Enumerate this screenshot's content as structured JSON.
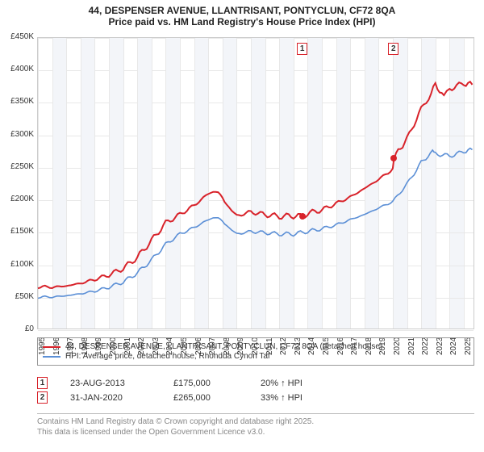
{
  "title_main": "44, DESPENSER AVENUE, LLANTRISANT, PONTYCLUN, CF72 8QA",
  "title_sub": "Price paid vs. HM Land Registry's House Price Index (HPI)",
  "chart": {
    "type": "line",
    "x_min": 1995,
    "x_max": 2025.8,
    "y_min": 0,
    "y_max": 450000,
    "y_ticks": [
      0,
      50000,
      100000,
      150000,
      200000,
      250000,
      300000,
      350000,
      400000,
      450000
    ],
    "y_tick_labels": [
      "£0",
      "£50K",
      "£100K",
      "£150K",
      "£200K",
      "£250K",
      "£300K",
      "£350K",
      "£400K",
      "£450K"
    ],
    "x_ticks": [
      1995,
      1996,
      1997,
      1998,
      1999,
      2000,
      2001,
      2002,
      2003,
      2004,
      2005,
      2006,
      2007,
      2008,
      2009,
      2010,
      2011,
      2012,
      2013,
      2014,
      2015,
      2016,
      2017,
      2018,
      2019,
      2020,
      2021,
      2022,
      2023,
      2024,
      2025
    ],
    "grid_color": "#e8e8e8",
    "band_color": "#f3f5f9",
    "background_color": "#ffffff",
    "series": [
      {
        "name": "property",
        "color": "#d8222a",
        "width": 2,
        "points": [
          [
            1995,
            67000
          ],
          [
            1996,
            66000
          ],
          [
            1997,
            68000
          ],
          [
            1998,
            72000
          ],
          [
            1999,
            78000
          ],
          [
            2000,
            85000
          ],
          [
            2001,
            95000
          ],
          [
            2002,
            112000
          ],
          [
            2003,
            138000
          ],
          [
            2004,
            165000
          ],
          [
            2005,
            178000
          ],
          [
            2006,
            192000
          ],
          [
            2007,
            210000
          ],
          [
            2007.7,
            215000
          ],
          [
            2008.3,
            192000
          ],
          [
            2009,
            176000
          ],
          [
            2010,
            182000
          ],
          [
            2011,
            178000
          ],
          [
            2012,
            175000
          ],
          [
            2013,
            176000
          ],
          [
            2013.65,
            175000
          ],
          [
            2014,
            180000
          ],
          [
            2015,
            185000
          ],
          [
            2016,
            195000
          ],
          [
            2017,
            205000
          ],
          [
            2018,
            218000
          ],
          [
            2019,
            232000
          ],
          [
            2020,
            248000
          ],
          [
            2020.08,
            265000
          ],
          [
            2021,
            295000
          ],
          [
            2022,
            340000
          ],
          [
            2022.7,
            365000
          ],
          [
            2023,
            378000
          ],
          [
            2023.6,
            360000
          ],
          [
            2024,
            372000
          ],
          [
            2025,
            380000
          ],
          [
            2025.6,
            378000
          ]
        ]
      },
      {
        "name": "hpi",
        "color": "#5b8fd6",
        "width": 1.6,
        "points": [
          [
            1995,
            51000
          ],
          [
            1996,
            51000
          ],
          [
            1997,
            53000
          ],
          [
            1998,
            56000
          ],
          [
            1999,
            60000
          ],
          [
            2000,
            66000
          ],
          [
            2001,
            74000
          ],
          [
            2002,
            88000
          ],
          [
            2003,
            108000
          ],
          [
            2004,
            132000
          ],
          [
            2005,
            148000
          ],
          [
            2006,
            158000
          ],
          [
            2007,
            170000
          ],
          [
            2007.7,
            175000
          ],
          [
            2008.3,
            160000
          ],
          [
            2009,
            148000
          ],
          [
            2010,
            152000
          ],
          [
            2011,
            150000
          ],
          [
            2012,
            148000
          ],
          [
            2013,
            148000
          ],
          [
            2014,
            152000
          ],
          [
            2015,
            156000
          ],
          [
            2016,
            162000
          ],
          [
            2017,
            170000
          ],
          [
            2018,
            178000
          ],
          [
            2019,
            188000
          ],
          [
            2020,
            198000
          ],
          [
            2021,
            225000
          ],
          [
            2022,
            258000
          ],
          [
            2022.8,
            275000
          ],
          [
            2023,
            272000
          ],
          [
            2024,
            268000
          ],
          [
            2025,
            275000
          ],
          [
            2025.6,
            278000
          ]
        ]
      }
    ],
    "sale_markers": [
      {
        "n": "1",
        "x": 2013.65,
        "y": 175000,
        "box_y_top": true,
        "color_border": "#d8222a"
      },
      {
        "n": "2",
        "x": 2020.08,
        "y": 265000,
        "box_y_top": true,
        "color_border": "#d8222a"
      }
    ]
  },
  "legend": [
    {
      "color": "#d8222a",
      "label": "44, DESPENSER AVENUE, LLANTRISANT, PONTYCLUN, CF72 8QA (detached house)"
    },
    {
      "color": "#5b8fd6",
      "label": "HPI: Average price, detached house, Rhondda Cynon Taf"
    }
  ],
  "sales": [
    {
      "n": "1",
      "date": "23-AUG-2013",
      "price": "£175,000",
      "pct": "20% ↑ HPI",
      "border": "#d8222a"
    },
    {
      "n": "2",
      "date": "31-JAN-2020",
      "price": "£265,000",
      "pct": "33% ↑ HPI",
      "border": "#d8222a"
    }
  ],
  "footer_line1": "Contains HM Land Registry data © Crown copyright and database right 2025.",
  "footer_line2": "This data is licensed under the Open Government Licence v3.0."
}
